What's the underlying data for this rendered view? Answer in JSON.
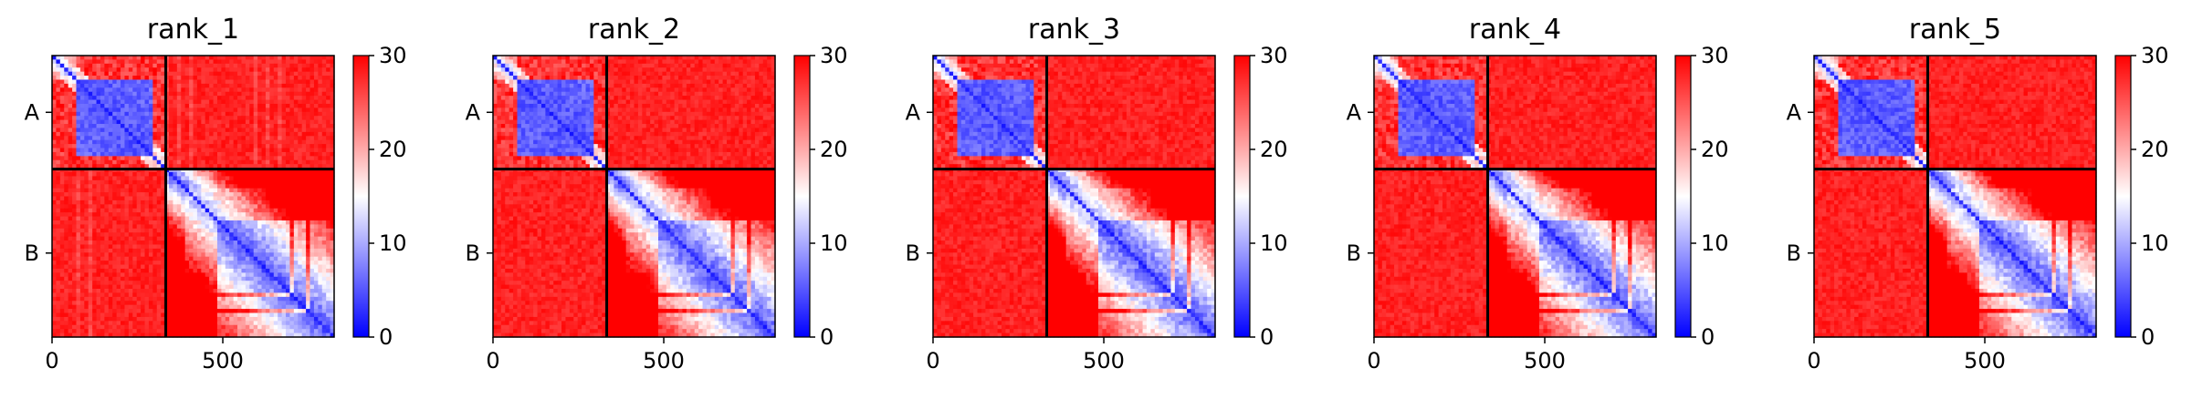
{
  "chart_data": {
    "type": "heatmap",
    "colormap": {
      "name": "bwr",
      "low_color": "#0000ff",
      "mid_color": "#ffffff",
      "high_color": "#ff0000"
    },
    "value_range": [
      0,
      30
    ],
    "colorbar_ticks": [
      0,
      10,
      20,
      30
    ],
    "x_ticks": [
      0,
      500
    ],
    "x_range": [
      0,
      826
    ],
    "y_range": [
      0,
      826
    ],
    "chain_labels": [
      "A",
      "B"
    ],
    "chain_lengths": [
      333,
      493
    ],
    "panels": [
      {
        "title": "rank_1"
      },
      {
        "title": "rank_2"
      },
      {
        "title": "rank_3"
      },
      {
        "title": "rank_4"
      },
      {
        "title": "rank_5"
      }
    ]
  }
}
